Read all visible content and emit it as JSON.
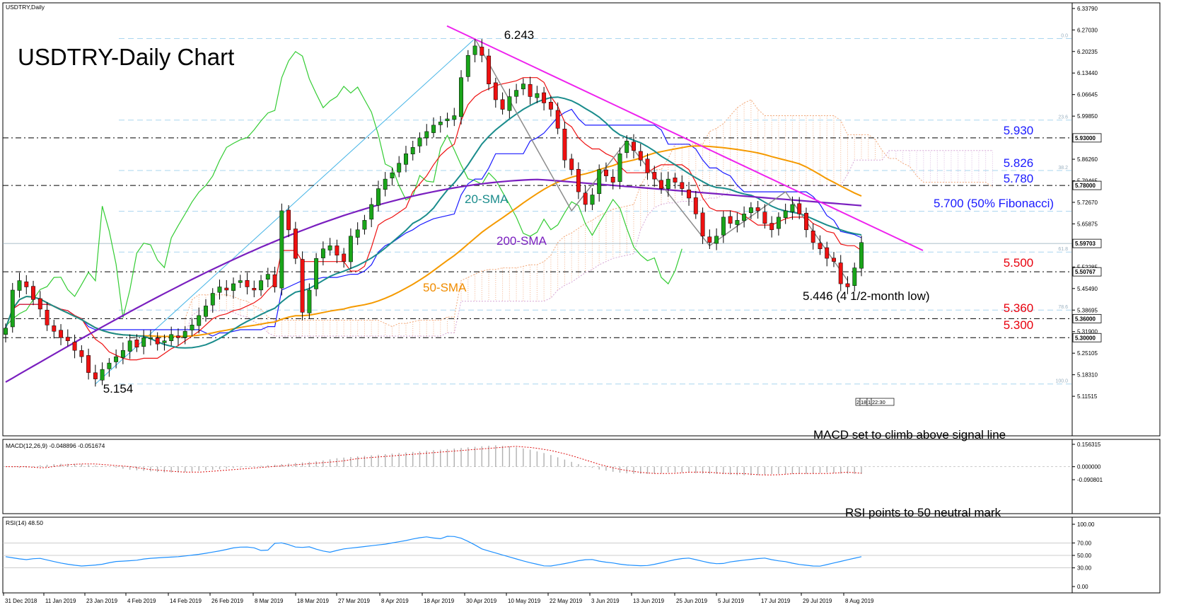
{
  "chart_data": {
    "type": "candlestick",
    "symbol": "USDTRY,Daily",
    "title": "USDTRY-Daily Chart",
    "price_axis": {
      "range": [
        5.1154,
        6.3379
      ],
      "ticks": [
        "6.33790",
        "6.27030",
        "6.20235",
        "6.13440",
        "6.06645",
        "5.99850",
        "5.93055",
        "5.86260",
        "5.79465",
        "5.72670",
        "5.65875",
        "5.59080",
        "5.52285",
        "5.45490",
        "5.38695",
        "5.31900",
        "5.25105",
        "5.18310",
        "5.11515"
      ],
      "markers": [
        {
          "label": "5.93000",
          "value": 5.93
        },
        {
          "label": "5.78000",
          "value": 5.78
        },
        {
          "label": "5.59703",
          "value": 5.597
        },
        {
          "label": "5.50767",
          "value": 5.5077
        },
        {
          "label": "5.36000",
          "value": 5.36
        },
        {
          "label": "5.30000",
          "value": 5.3
        }
      ]
    },
    "x_labels": [
      "31 Dec 2018",
      "11 Jan 2019",
      "23 Jan 2019",
      "4 Feb 2019",
      "14 Feb 2019",
      "26 Feb 2019",
      "8 Mar 2019",
      "18 Mar 2019",
      "27 Mar 2019",
      "8 Apr 2019",
      "18 Apr 2019",
      "30 Apr 2019",
      "10 May 2019",
      "22 May 2019",
      "3 Jun 2019",
      "13 Jun 2019",
      "25 Jun 2019",
      "5 Jul 2019",
      "17 Jul 2019",
      "29 Jul 2019",
      "8 Aug 2019"
    ],
    "levels": [
      {
        "label": "5.930",
        "value": 5.93,
        "color": "#1a1aff"
      },
      {
        "label": "5.826",
        "value": 5.826,
        "color": "#1a1aff"
      },
      {
        "label": "5.780",
        "value": 5.78,
        "color": "#1a1aff"
      },
      {
        "label": "5.700 (50% Fibonacci)",
        "value": 5.7,
        "color": "#1a1aff"
      },
      {
        "label": "5.500",
        "value": 5.5,
        "color": "#e8000d"
      },
      {
        "label": "5.360",
        "value": 5.36,
        "color": "#e8000d"
      },
      {
        "label": "5.300",
        "value": 5.3,
        "color": "#e8000d"
      }
    ],
    "fib_labels": [
      "0.0",
      "23.6",
      "38.2",
      "61.8",
      "78.6",
      "100.0"
    ],
    "annotations": [
      {
        "text": "6.243",
        "kind": "peak"
      },
      {
        "text": "5.154",
        "kind": "trough"
      },
      {
        "text": "5.446 (4 1/2-month low)",
        "kind": "low"
      },
      {
        "text": "20-SMA",
        "color": "#1a8c8c"
      },
      {
        "text": "50-SMA",
        "color": "#f08c00"
      },
      {
        "text": "200-SMA",
        "color": "#7a1fbf"
      }
    ],
    "candles_close": [
      5.33,
      5.45,
      5.48,
      5.46,
      5.42,
      5.39,
      5.34,
      5.32,
      5.3,
      5.29,
      5.26,
      5.24,
      5.19,
      5.17,
      5.2,
      5.22,
      5.24,
      5.26,
      5.29,
      5.27,
      5.3,
      5.3,
      5.28,
      5.29,
      5.31,
      5.3,
      5.32,
      5.34,
      5.37,
      5.4,
      5.44,
      5.46,
      5.45,
      5.47,
      5.48,
      5.46,
      5.45,
      5.48,
      5.5,
      5.46,
      5.7,
      5.64,
      5.55,
      5.38,
      5.45,
      5.55,
      5.58,
      5.59,
      5.56,
      5.54,
      5.62,
      5.64,
      5.67,
      5.72,
      5.77,
      5.8,
      5.82,
      5.85,
      5.88,
      5.9,
      5.93,
      5.95,
      5.97,
      5.98,
      5.99,
      6.0,
      6.12,
      6.19,
      6.22,
      6.19,
      6.1,
      6.05,
      6.02,
      6.06,
      6.08,
      6.1,
      6.06,
      6.07,
      6.04,
      6.02,
      5.96,
      5.86,
      5.83,
      5.76,
      5.72,
      5.75,
      5.83,
      5.81,
      5.79,
      5.88,
      5.92,
      5.89,
      5.86,
      5.82,
      5.8,
      5.77,
      5.8,
      5.79,
      5.77,
      5.74,
      5.69,
      5.62,
      5.6,
      5.62,
      5.68,
      5.66,
      5.67,
      5.69,
      5.71,
      5.7,
      5.66,
      5.64,
      5.68,
      5.7,
      5.72,
      5.69,
      5.64,
      5.6,
      5.58,
      5.55,
      5.54,
      5.47,
      5.46,
      5.52,
      5.6
    ],
    "sma20_end": 5.605,
    "sma50_end": 5.685,
    "sma200_end": 5.573,
    "trendline": {
      "from": [
        66,
        6.265
      ],
      "to": [
        126,
        5.575
      ]
    },
    "macd": {
      "label": "MACD(12,26,9) -0.048896 -0.051674",
      "range": [
        -0.090801,
        0.156315
      ],
      "ticks": [
        "0.156315",
        "0.000000",
        "-0.090801"
      ],
      "annotation": "MACD set to climb above signal line",
      "hist_shape": [
        0.0,
        -0.01,
        0.01,
        0.02,
        0.02,
        0.01,
        0.0,
        -0.02,
        -0.03,
        -0.04,
        -0.04,
        -0.03,
        -0.02,
        -0.01,
        0.0,
        0.01,
        0.02,
        0.03,
        0.04,
        0.06,
        0.07,
        0.08,
        0.09,
        0.1,
        0.11,
        0.12,
        0.13,
        0.14,
        0.15,
        0.14,
        0.12,
        0.09,
        0.05,
        0.01,
        -0.02,
        -0.04,
        -0.05,
        -0.05,
        -0.04,
        -0.04,
        -0.05,
        -0.05,
        -0.06,
        -0.06,
        -0.05,
        -0.05,
        -0.05,
        -0.04,
        -0.05,
        -0.05
      ]
    },
    "rsi": {
      "label": "RSI(14) 48.50",
      "range": [
        0,
        100
      ],
      "ticks": [
        "100.00",
        "70.00",
        "50.00",
        "30.00",
        "0.00"
      ],
      "annotation": "RSI points to 50 neutral mark",
      "values": [
        48,
        45,
        43,
        46,
        42,
        38,
        35,
        33,
        34,
        36,
        40,
        41,
        42,
        45,
        46,
        47,
        48,
        50,
        52,
        55,
        58,
        62,
        64,
        62,
        55,
        72,
        68,
        62,
        64,
        58,
        55,
        60,
        62,
        64,
        66,
        68,
        71,
        74,
        78,
        80,
        76,
        82,
        78,
        70,
        60,
        55,
        50,
        45,
        40,
        36,
        32,
        35,
        38,
        42,
        44,
        40,
        38,
        35,
        34,
        33,
        36,
        40,
        44,
        46,
        42,
        38,
        36,
        40,
        42,
        44,
        46,
        42,
        40,
        36,
        34,
        32,
        36,
        40,
        44,
        48
      ]
    },
    "time_badge": [
      "2",
      "18",
      "1",
      "22:30"
    ]
  }
}
